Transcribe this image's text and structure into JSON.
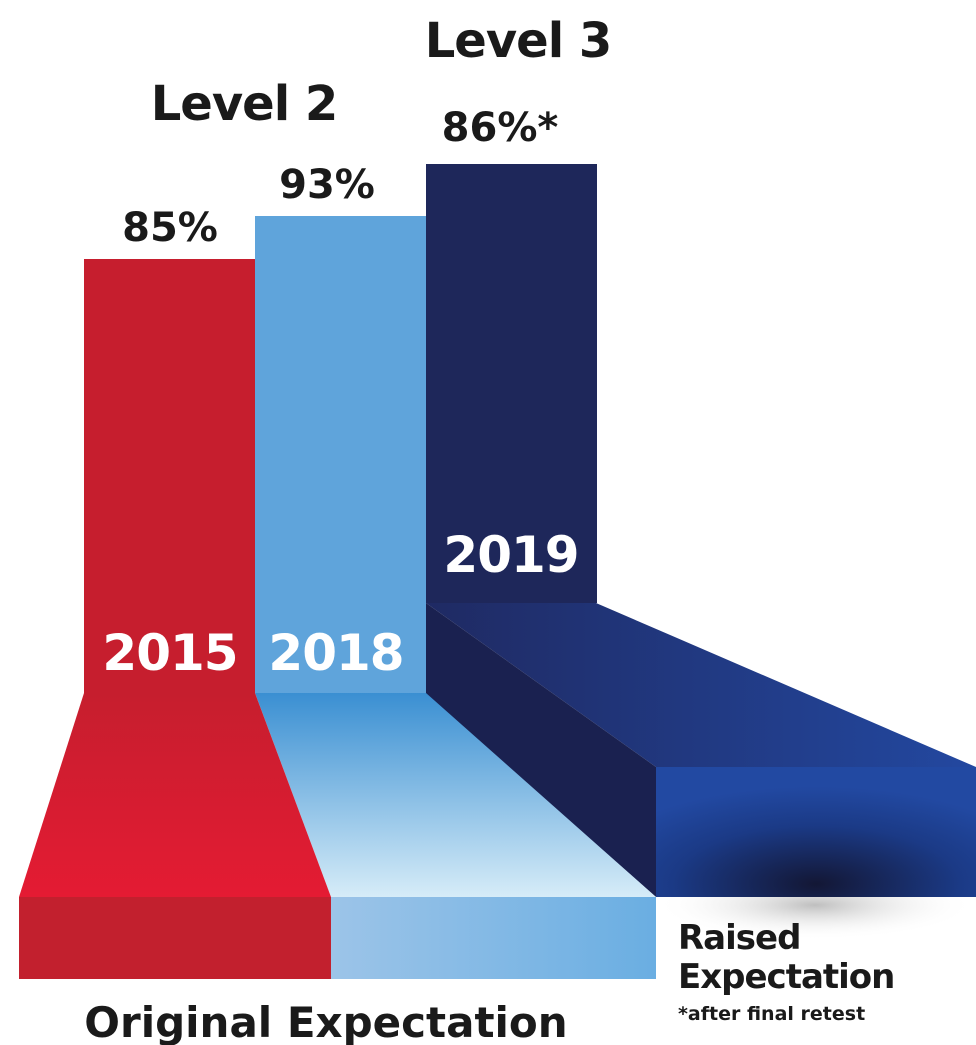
{
  "chart_data": {
    "type": "bar",
    "title": "",
    "xlabel": "",
    "ylabel": "",
    "categories": [
      "2015",
      "2018",
      "2019"
    ],
    "values": [
      85,
      93,
      86
    ],
    "value_labels": [
      "85%",
      "93%",
      "86%*"
    ],
    "level_labels": [
      {
        "category": "2018",
        "text": "Level 2"
      },
      {
        "category": "2019",
        "text": "Level 3"
      }
    ],
    "ylim": [
      0,
      100
    ],
    "grid": false,
    "legend": "none",
    "base_labels": {
      "original": "Original Expectation",
      "raised_line1": "Raised",
      "raised_line2": "Expectation",
      "footnote": "*after final retest"
    },
    "colors": {
      "2015": "#c61e2e",
      "2018": "#5fa4db",
      "2019": "#1e275a",
      "text_dark": "#1a1a1a",
      "text_light": "#ffffff"
    }
  }
}
